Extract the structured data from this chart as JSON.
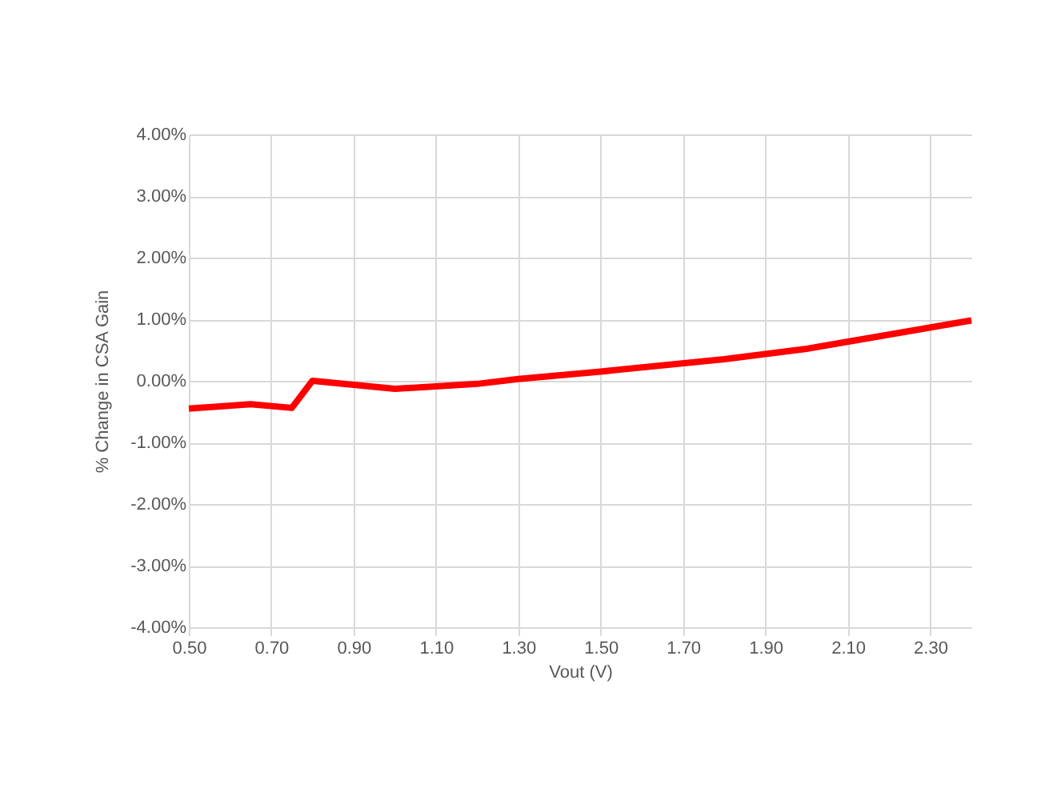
{
  "chart_data": {
    "type": "line",
    "xlabel": "Vout (V)",
    "ylabel": "% Change in CSA Gain",
    "x": [
      0.5,
      0.65,
      0.75,
      0.8,
      1.0,
      1.2,
      1.3,
      1.5,
      1.8,
      2.0,
      2.2,
      2.4
    ],
    "series": [
      {
        "color": "#ff0000",
        "values": [
          -0.45,
          -0.38,
          -0.44,
          0.0,
          -0.13,
          -0.05,
          0.03,
          0.15,
          0.35,
          0.52,
          0.75,
          0.98
        ]
      }
    ],
    "xlim": [
      0.5,
      2.4
    ],
    "xticks": [
      {
        "value": 0.5,
        "label": "0.50"
      },
      {
        "value": 0.7,
        "label": "0.70"
      },
      {
        "value": 0.9,
        "label": "0.90"
      },
      {
        "value": 1.1,
        "label": "1.10"
      },
      {
        "value": 1.3,
        "label": "1.30"
      },
      {
        "value": 1.5,
        "label": "1.50"
      },
      {
        "value": 1.7,
        "label": "1.70"
      },
      {
        "value": 1.9,
        "label": "1.90"
      },
      {
        "value": 2.1,
        "label": "2.10"
      },
      {
        "value": 2.3,
        "label": "2.30"
      }
    ],
    "ylim": [
      -4,
      4
    ],
    "yticks": [
      {
        "value": -4,
        "label": "-4.00%"
      },
      {
        "value": -3,
        "label": "-3.00%"
      },
      {
        "value": -2,
        "label": "-2.00%"
      },
      {
        "value": -1,
        "label": "-1.00%"
      },
      {
        "value": 0,
        "label": "0.00%"
      },
      {
        "value": 1,
        "label": "1.00%"
      },
      {
        "value": 2,
        "label": "2.00%"
      },
      {
        "value": 3,
        "label": "3.00%"
      },
      {
        "value": 4,
        "label": "4.00%"
      }
    ],
    "grid": true,
    "marker": "none",
    "line_style": "solid"
  }
}
